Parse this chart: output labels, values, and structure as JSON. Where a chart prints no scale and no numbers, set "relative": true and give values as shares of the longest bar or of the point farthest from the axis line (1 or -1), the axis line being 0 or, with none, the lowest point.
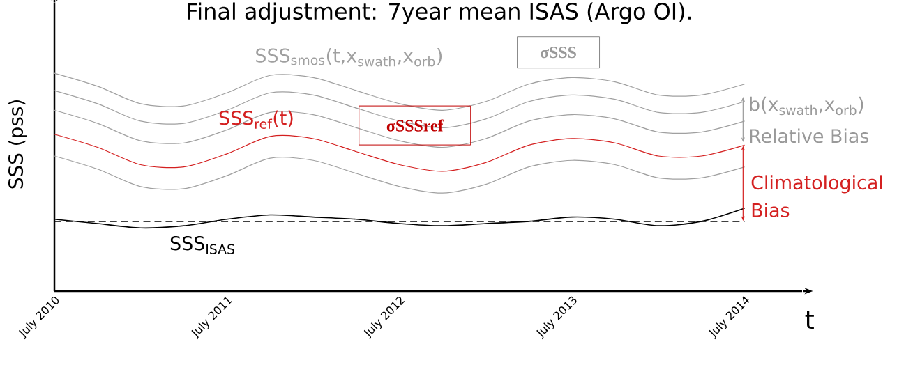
{
  "chart_data": {
    "type": "line",
    "title": "Final adjustment: 7year mean ISAS (Argo OI).",
    "xlabel": "t",
    "ylabel": "SSS (pss)",
    "relative": true,
    "x": [
      "2010-07",
      "2010-10",
      "2011-01",
      "2011-04",
      "2011-07",
      "2011-10",
      "2012-01",
      "2012-04",
      "2012-07",
      "2012-10",
      "2013-01",
      "2013-04",
      "2013-07",
      "2013-10",
      "2014-01",
      "2014-04",
      "2014-07"
    ],
    "xlim": [
      "2010-07",
      "2014-11"
    ],
    "xticks": [
      {
        "value": "2010-07",
        "label": "July 2010"
      },
      {
        "value": "2011-07",
        "label": "July 2011"
      },
      {
        "value": "2012-07",
        "label": "July 2012"
      },
      {
        "value": "2013-07",
        "label": "July 2013"
      },
      {
        "value": "2014-07",
        "label": "July 2014"
      }
    ],
    "series": [
      {
        "name": "SSS$_{smos}$(t,x$_{swath}$,x$_{orb}$)",
        "color": "#a0a0a0",
        "values": [
          1.0,
          0.94,
          0.86,
          0.85,
          0.91,
          0.99,
          0.98,
          0.92,
          0.86,
          0.83,
          0.87,
          0.95,
          0.98,
          0.96,
          0.9,
          0.9,
          0.95
        ]
      },
      {
        "color": "#a0a0a0",
        "values": [
          0.92,
          0.86,
          0.78,
          0.77,
          0.83,
          0.91,
          0.9,
          0.84,
          0.78,
          0.75,
          0.79,
          0.87,
          0.9,
          0.88,
          0.82,
          0.82,
          0.87
        ]
      },
      {
        "color": "#a0a0a0",
        "values": [
          0.83,
          0.77,
          0.69,
          0.68,
          0.74,
          0.82,
          0.81,
          0.75,
          0.69,
          0.66,
          0.7,
          0.78,
          0.81,
          0.79,
          0.73,
          0.73,
          0.78
        ]
      },
      {
        "name": "SSS$_{ref}$(t)",
        "color": "#d42020",
        "values": [
          0.72,
          0.66,
          0.58,
          0.57,
          0.63,
          0.71,
          0.7,
          0.64,
          0.58,
          0.55,
          0.59,
          0.67,
          0.7,
          0.68,
          0.62,
          0.62,
          0.67
        ]
      },
      {
        "color": "#a0a0a0",
        "values": [
          0.62,
          0.56,
          0.48,
          0.47,
          0.53,
          0.61,
          0.6,
          0.54,
          0.48,
          0.45,
          0.49,
          0.57,
          0.6,
          0.58,
          0.52,
          0.52,
          0.57
        ]
      },
      {
        "name": "SSS$_{ISAS}$",
        "color": "#000000",
        "values": [
          0.33,
          0.31,
          0.29,
          0.3,
          0.33,
          0.35,
          0.34,
          0.33,
          0.31,
          0.3,
          0.31,
          0.32,
          0.34,
          0.33,
          0.3,
          0.32,
          0.38
        ]
      }
    ],
    "ref_lines": [
      {
        "axis": "y",
        "value": 0.32,
        "color": "#000000",
        "line_style": "dashed"
      }
    ],
    "annotations": [
      "σSSS",
      "σSSSref",
      "b(x$_{swath}$,x$_{orb}$)",
      "Relative Bias",
      "Climatological Bias"
    ]
  }
}
